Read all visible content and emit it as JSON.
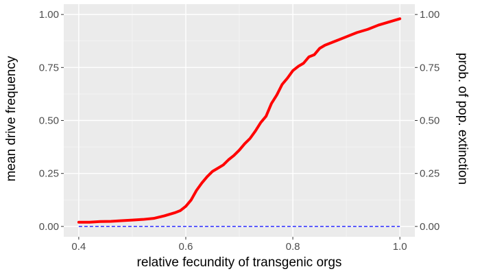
{
  "chart_data": {
    "type": "line",
    "title": "",
    "xlabel": "relative fecundity of transgenic orgs",
    "ylabel": "mean drive frequency",
    "ylabel_right": "prob. of pop. extinction",
    "xlim": [
      0.372,
      1.028
    ],
    "ylim": [
      -0.049,
      1.049
    ],
    "x_ticks": [
      0.4,
      0.6,
      0.8,
      1.0
    ],
    "x_tick_labels": [
      "0.4",
      "0.6",
      "0.8",
      "1.0"
    ],
    "y_ticks": [
      0.0,
      0.25,
      0.5,
      0.75,
      1.0
    ],
    "y_tick_labels": [
      "0.00",
      "0.25",
      "0.50",
      "0.75",
      "1.00"
    ],
    "y_tick_labels_right": [
      "0.00",
      "0.25",
      "0.50",
      "0.75",
      "1.00"
    ],
    "grid": true,
    "legend": "none",
    "colors": {
      "panel_background": "#ebebeb",
      "grid_major": "#ffffff",
      "grid_minor": "#f5f5f5",
      "tick_mark": "#333333"
    },
    "series": [
      {
        "color": "#ff0000",
        "line_style": "solid",
        "x": [
          0.4,
          0.42,
          0.44,
          0.46,
          0.48,
          0.5,
          0.52,
          0.54,
          0.56,
          0.58,
          0.59,
          0.6,
          0.61,
          0.62,
          0.63,
          0.64,
          0.65,
          0.66,
          0.67,
          0.68,
          0.69,
          0.7,
          0.71,
          0.72,
          0.73,
          0.74,
          0.75,
          0.76,
          0.77,
          0.78,
          0.79,
          0.8,
          0.81,
          0.82,
          0.83,
          0.84,
          0.85,
          0.86,
          0.88,
          0.9,
          0.92,
          0.94,
          0.96,
          0.98,
          1.0
        ],
        "values": [
          0.02,
          0.02,
          0.023,
          0.024,
          0.027,
          0.03,
          0.033,
          0.038,
          0.05,
          0.065,
          0.075,
          0.095,
          0.125,
          0.17,
          0.205,
          0.235,
          0.26,
          0.275,
          0.29,
          0.315,
          0.335,
          0.36,
          0.39,
          0.415,
          0.45,
          0.49,
          0.52,
          0.58,
          0.62,
          0.67,
          0.7,
          0.735,
          0.755,
          0.77,
          0.8,
          0.81,
          0.84,
          0.855,
          0.875,
          0.895,
          0.915,
          0.93,
          0.95,
          0.965,
          0.98
        ]
      },
      {
        "color": "#0000ff",
        "line_style": "dashed",
        "x": [
          0.4,
          1.0
        ],
        "values": [
          0.0,
          0.0
        ]
      }
    ]
  }
}
